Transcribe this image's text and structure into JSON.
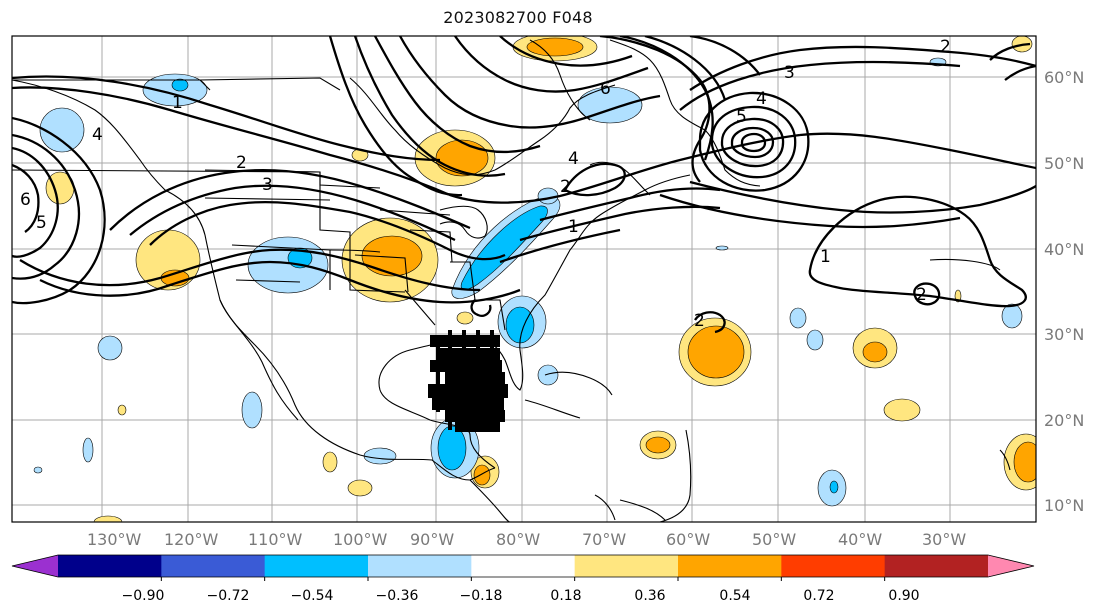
{
  "title": "2023082700 F048",
  "lon_labels": [
    "130°W",
    "120°W",
    "110°W",
    "100°W",
    "90°W",
    "80°W",
    "70°W",
    "60°W",
    "50°W",
    "40°W",
    "30°W"
  ],
  "lat_labels": [
    "60°N",
    "50°N",
    "40°N",
    "30°N",
    "20°N",
    "10°N"
  ],
  "colorbar": {
    "labels": [
      "−0.90",
      "−0.72",
      "−0.54",
      "−0.36",
      "−0.18",
      "0.18",
      "0.36",
      "0.54",
      "0.72",
      "0.90"
    ],
    "colors": [
      "#9b30d0",
      "#00008b",
      "#3a5bd6",
      "#00bfff",
      "#b0e0ff",
      "#ffffff",
      "#ffe680",
      "#ffa500",
      "#ff3d00",
      "#b22222",
      "#ff88b0"
    ]
  },
  "contour_labels": [
    "1",
    "2",
    "3",
    "4",
    "5",
    "6",
    "2",
    "3",
    "4",
    "5",
    "1",
    "2",
    "1",
    "2",
    "2",
    "4",
    "6"
  ]
}
